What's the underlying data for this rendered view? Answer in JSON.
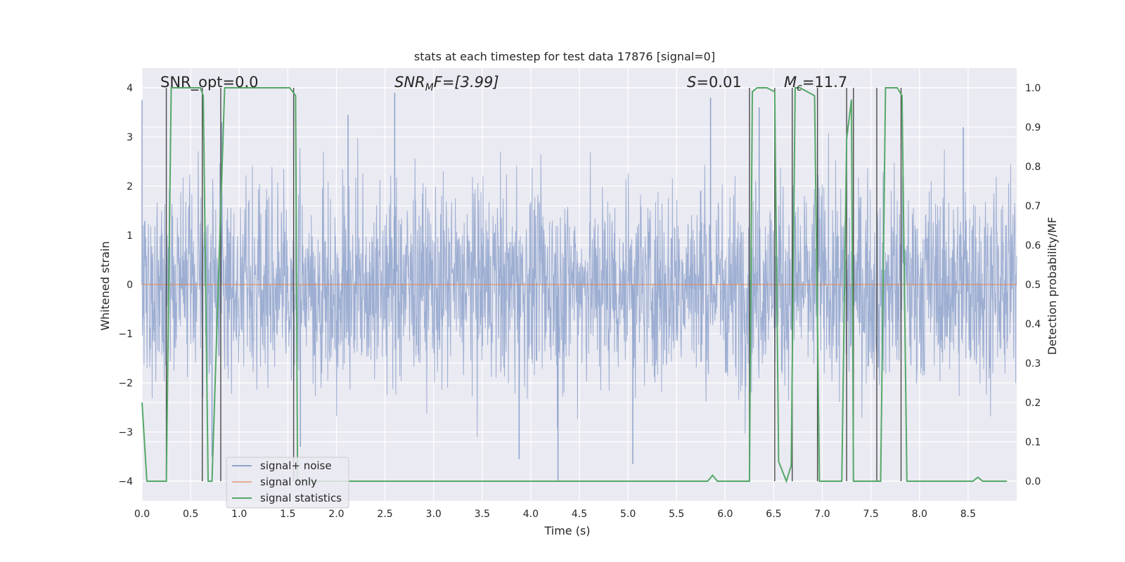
{
  "chart_data": {
    "type": "line",
    "title": "stats at each timestep for test data 17876 [signal=0]",
    "xlabel": "Time (s)",
    "ylabel": "Whitened strain",
    "ylabel_right": "Detection probability/MF",
    "xlim": [
      0.0,
      9.0
    ],
    "ylim": [
      -4.4,
      4.4
    ],
    "ylim_right": [
      -0.05,
      1.05
    ],
    "x_ticks": [
      "0.0",
      "0.5",
      "1.0",
      "1.5",
      "2.0",
      "2.5",
      "3.0",
      "3.5",
      "4.0",
      "4.5",
      "5.0",
      "5.5",
      "6.0",
      "6.5",
      "7.0",
      "7.5",
      "8.0",
      "8.5"
    ],
    "y_ticks": [
      "4",
      "3",
      "2",
      "1",
      "0",
      "−1",
      "−2",
      "−3",
      "−4"
    ],
    "y_right_ticks": [
      "1.0",
      "0.9",
      "0.8",
      "0.7",
      "0.6",
      "0.5",
      "0.4",
      "0.3",
      "0.2",
      "0.1",
      "0.0"
    ],
    "grid": true,
    "legend_position": "lower-left",
    "legend": [
      "signal+ noise",
      "signal only",
      "signal statistics"
    ],
    "annotations": {
      "snr_opt": "SNR_opt=0.0",
      "snr_mf": "SNR",
      "snr_mf_sub": "M",
      "snr_mf_rest": "F=[3.99]",
      "s_italic": "S",
      "s_rest": "=0.01",
      "mc_italic": "M",
      "mc_sub": "c",
      "mc_rest": "=11.7"
    },
    "series": [
      {
        "name": "signal+ noise",
        "color": "#8fa3cc",
        "description": "noisy whitened strain, mostly between -2.2 and 2.3 with peaks near 3.8 and -4.0",
        "envelope_typical": [
          -2.2,
          2.3
        ],
        "notable_peaks": [
          {
            "x": 0.0,
            "y": 3.75
          },
          {
            "x": 0.82,
            "y": 3.3
          },
          {
            "x": 2.12,
            "y": 3.45
          },
          {
            "x": 2.6,
            "y": 3.9
          },
          {
            "x": 4.28,
            "y": -4.0
          },
          {
            "x": 5.85,
            "y": 3.8
          },
          {
            "x": 6.35,
            "y": 3.6
          },
          {
            "x": 8.45,
            "y": 3.2
          },
          {
            "x": 3.88,
            "y": -3.55
          },
          {
            "x": 5.05,
            "y": -3.65
          },
          {
            "x": 1.63,
            "y": -3.3
          },
          {
            "x": 0.72,
            "y": -3.5
          }
        ]
      },
      {
        "name": "signal only",
        "color": "#dd8452",
        "x": [
          0.0,
          9.0
        ],
        "y": [
          0.0,
          0.0
        ]
      },
      {
        "name": "signal statistics",
        "color": "#55a868",
        "axis": "right",
        "x": [
          0.0,
          0.05,
          0.25,
          0.3,
          0.6,
          0.63,
          0.68,
          0.72,
          0.85,
          0.9,
          1.52,
          1.58,
          1.6,
          5.82,
          5.87,
          5.92,
          6.25,
          6.28,
          6.33,
          6.43,
          6.51,
          6.55,
          6.63,
          6.68,
          6.72,
          6.77,
          6.92,
          6.97,
          7.02,
          7.2,
          7.25,
          7.3,
          7.32,
          7.5,
          7.58,
          7.6,
          7.65,
          7.77,
          7.82,
          7.87,
          8.55,
          8.6,
          8.65,
          8.9
        ],
        "y": [
          0.2,
          0.0,
          0.0,
          1.0,
          1.0,
          0.98,
          0.0,
          0.0,
          1.0,
          1.0,
          1.0,
          0.98,
          0.0,
          0.0,
          0.015,
          0.0,
          0.0,
          0.99,
          1.0,
          1.0,
          0.99,
          0.05,
          0.0,
          0.04,
          1.0,
          1.0,
          0.98,
          0.0,
          0.0,
          0.0,
          0.87,
          0.97,
          0.0,
          0.0,
          0.0,
          0.0,
          1.0,
          1.0,
          0.98,
          0.0,
          0.0,
          0.01,
          0.0,
          0.0
        ]
      }
    ],
    "vertical_markers_x": [
      0.25,
      0.62,
      0.81,
      1.56,
      6.25,
      6.51,
      6.69,
      6.95,
      7.25,
      7.32,
      7.56,
      7.81
    ]
  }
}
